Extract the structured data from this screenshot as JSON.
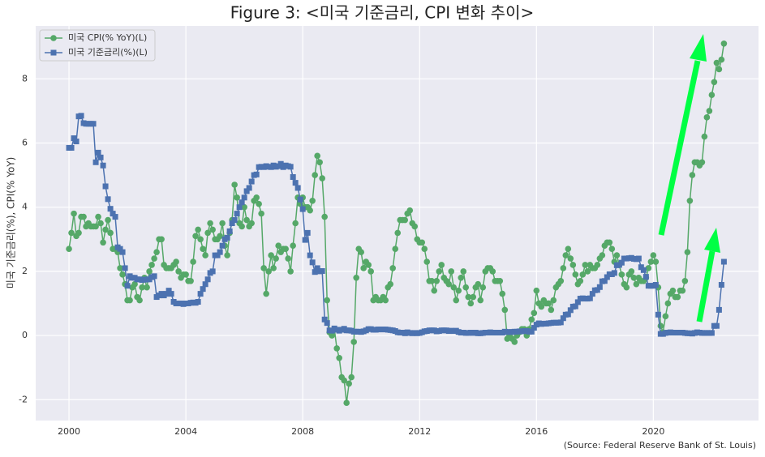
{
  "chart_data": {
    "type": "line",
    "title": "Figure 3: <미국 기준금리, CPI 변화 추이>",
    "y_label": "미국 기준금리(%), CPI(% YoY)",
    "source": "(Source: Federal Reserve Bank of St. Louis)",
    "xlim": [
      1998.86,
      2023.6
    ],
    "xticks": [
      2000,
      2004,
      2008,
      2012,
      2016,
      2020
    ],
    "ylim": [
      -2.65,
      9.65
    ],
    "yticks": [
      -2,
      0,
      2,
      4,
      6,
      8
    ],
    "grid": true,
    "legend": "upper left",
    "x": [
      2000,
      2000.083,
      2000.167,
      2000.25,
      2000.333,
      2000.417,
      2000.5,
      2000.583,
      2000.667,
      2000.75,
      2000.833,
      2000.917,
      2001,
      2001.083,
      2001.167,
      2001.25,
      2001.333,
      2001.417,
      2001.5,
      2001.583,
      2001.667,
      2001.75,
      2001.833,
      2001.917,
      2002,
      2002.083,
      2002.167,
      2002.25,
      2002.333,
      2002.417,
      2002.5,
      2002.583,
      2002.667,
      2002.75,
      2002.833,
      2002.917,
      2003,
      2003.083,
      2003.167,
      2003.25,
      2003.333,
      2003.417,
      2003.5,
      2003.583,
      2003.667,
      2003.75,
      2003.833,
      2003.917,
      2004,
      2004.083,
      2004.167,
      2004.25,
      2004.333,
      2004.417,
      2004.5,
      2004.583,
      2004.667,
      2004.75,
      2004.833,
      2004.917,
      2005,
      2005.083,
      2005.167,
      2005.25,
      2005.333,
      2005.417,
      2005.5,
      2005.583,
      2005.667,
      2005.75,
      2005.833,
      2005.917,
      2006,
      2006.083,
      2006.167,
      2006.25,
      2006.333,
      2006.417,
      2006.5,
      2006.583,
      2006.667,
      2006.75,
      2006.833,
      2006.917,
      2007,
      2007.083,
      2007.167,
      2007.25,
      2007.333,
      2007.417,
      2007.5,
      2007.583,
      2007.667,
      2007.75,
      2007.833,
      2007.917,
      2008,
      2008.083,
      2008.167,
      2008.25,
      2008.333,
      2008.417,
      2008.5,
      2008.583,
      2008.667,
      2008.75,
      2008.833,
      2008.917,
      2009,
      2009.083,
      2009.167,
      2009.25,
      2009.333,
      2009.417,
      2009.5,
      2009.583,
      2009.667,
      2009.75,
      2009.833,
      2009.917,
      2010,
      2010.083,
      2010.167,
      2010.25,
      2010.333,
      2010.417,
      2010.5,
      2010.583,
      2010.667,
      2010.75,
      2010.833,
      2010.917,
      2011,
      2011.083,
      2011.167,
      2011.25,
      2011.333,
      2011.417,
      2011.5,
      2011.583,
      2011.667,
      2011.75,
      2011.833,
      2011.917,
      2012,
      2012.083,
      2012.167,
      2012.25,
      2012.333,
      2012.417,
      2012.5,
      2012.583,
      2012.667,
      2012.75,
      2012.833,
      2012.917,
      2013,
      2013.083,
      2013.167,
      2013.25,
      2013.333,
      2013.417,
      2013.5,
      2013.583,
      2013.667,
      2013.75,
      2013.833,
      2013.917,
      2014,
      2014.083,
      2014.167,
      2014.25,
      2014.333,
      2014.417,
      2014.5,
      2014.583,
      2014.667,
      2014.75,
      2014.833,
      2014.917,
      2015,
      2015.083,
      2015.167,
      2015.25,
      2015.333,
      2015.417,
      2015.5,
      2015.583,
      2015.667,
      2015.75,
      2015.833,
      2015.917,
      2016,
      2016.083,
      2016.167,
      2016.25,
      2016.333,
      2016.417,
      2016.5,
      2016.583,
      2016.667,
      2016.75,
      2016.833,
      2016.917,
      2017,
      2017.083,
      2017.167,
      2017.25,
      2017.333,
      2017.417,
      2017.5,
      2017.583,
      2017.667,
      2017.75,
      2017.833,
      2017.917,
      2018,
      2018.083,
      2018.167,
      2018.25,
      2018.333,
      2018.417,
      2018.5,
      2018.583,
      2018.667,
      2018.75,
      2018.833,
      2018.917,
      2019,
      2019.083,
      2019.167,
      2019.25,
      2019.333,
      2019.417,
      2019.5,
      2019.583,
      2019.667,
      2019.75,
      2019.833,
      2019.917,
      2020,
      2020.083,
      2020.167,
      2020.25,
      2020.333,
      2020.417,
      2020.5,
      2020.583,
      2020.667,
      2020.75,
      2020.833,
      2020.917,
      2021,
      2021.083,
      2021.167,
      2021.25,
      2021.333,
      2021.417,
      2021.5,
      2021.583,
      2021.667,
      2021.75,
      2021.833,
      2021.917,
      2022,
      2022.083,
      2022.167,
      2022.25,
      2022.333,
      2022.417
    ],
    "series": [
      {
        "name": "미국 CPI(% YoY)(L)",
        "color": "#55a868",
        "marker": "o",
        "values": [
          2.7,
          3.2,
          3.8,
          3.1,
          3.2,
          3.7,
          3.7,
          3.4,
          3.5,
          3.4,
          3.4,
          3.4,
          3.7,
          3.5,
          2.9,
          3.3,
          3.6,
          3.2,
          2.7,
          2.7,
          2.6,
          2.1,
          1.9,
          1.6,
          1.1,
          1.1,
          1.5,
          1.6,
          1.2,
          1.1,
          1.5,
          1.8,
          1.5,
          2.0,
          2.2,
          2.4,
          2.6,
          3.0,
          3.0,
          2.2,
          2.1,
          2.1,
          2.1,
          2.2,
          2.3,
          2.0,
          1.8,
          1.9,
          1.9,
          1.7,
          1.7,
          2.3,
          3.1,
          3.3,
          3.0,
          2.7,
          2.5,
          3.2,
          3.5,
          3.3,
          3.0,
          3.0,
          3.1,
          3.5,
          2.8,
          2.5,
          3.2,
          3.6,
          4.7,
          4.3,
          3.5,
          3.4,
          4.0,
          3.6,
          3.4,
          3.5,
          4.2,
          4.3,
          4.1,
          3.8,
          2.1,
          1.3,
          2.0,
          2.5,
          2.1,
          2.4,
          2.8,
          2.6,
          2.7,
          2.7,
          2.4,
          2.0,
          2.8,
          3.5,
          4.3,
          4.1,
          4.3,
          4.0,
          4.0,
          3.9,
          4.2,
          5.0,
          5.6,
          5.4,
          4.9,
          3.7,
          1.1,
          0.1,
          0.0,
          0.2,
          -0.4,
          -0.7,
          -1.3,
          -1.4,
          -2.1,
          -1.5,
          -1.3,
          -0.2,
          1.8,
          2.7,
          2.6,
          2.1,
          2.3,
          2.2,
          2.0,
          1.1,
          1.2,
          1.1,
          1.1,
          1.2,
          1.1,
          1.5,
          1.6,
          2.1,
          2.7,
          3.2,
          3.6,
          3.6,
          3.6,
          3.8,
          3.9,
          3.5,
          3.4,
          3.0,
          2.9,
          2.9,
          2.7,
          2.3,
          1.7,
          1.7,
          1.4,
          1.7,
          2.0,
          2.2,
          1.8,
          1.7,
          1.6,
          2.0,
          1.5,
          1.1,
          1.4,
          1.8,
          2.0,
          1.5,
          1.2,
          1.0,
          1.2,
          1.5,
          1.6,
          1.1,
          1.5,
          2.0,
          2.1,
          2.1,
          2.0,
          1.7,
          1.7,
          1.7,
          1.3,
          0.8,
          -0.1,
          0.0,
          -0.1,
          -0.2,
          0.0,
          0.1,
          0.2,
          0.2,
          0.0,
          0.2,
          0.5,
          0.7,
          1.4,
          1.0,
          0.9,
          1.1,
          1.0,
          1.0,
          0.8,
          1.1,
          1.5,
          1.6,
          1.7,
          2.1,
          2.5,
          2.7,
          2.4,
          2.2,
          1.9,
          1.6,
          1.7,
          1.9,
          2.2,
          2.0,
          2.2,
          2.1,
          2.1,
          2.2,
          2.4,
          2.5,
          2.8,
          2.9,
          2.9,
          2.7,
          2.3,
          2.5,
          2.2,
          1.9,
          1.6,
          1.5,
          1.9,
          2.0,
          1.8,
          1.6,
          1.8,
          1.7,
          1.7,
          1.8,
          2.1,
          2.3,
          2.5,
          2.3,
          1.5,
          0.3,
          0.1,
          0.6,
          1.0,
          1.3,
          1.4,
          1.2,
          1.2,
          1.4,
          1.4,
          1.7,
          2.6,
          4.2,
          5.0,
          5.4,
          5.4,
          5.3,
          5.4,
          6.2,
          6.8,
          7.0,
          7.5,
          7.9,
          8.5,
          8.3,
          8.6,
          9.1
        ]
      },
      {
        "name": "미국 기준금리(%)(L)",
        "color": "#4c72b0",
        "marker": "s",
        "values": [
          5.85,
          5.85,
          6.15,
          6.05,
          6.83,
          6.85,
          6.62,
          6.6,
          6.6,
          6.6,
          6.6,
          5.4,
          5.7,
          5.55,
          5.3,
          4.65,
          4.25,
          3.95,
          3.8,
          3.7,
          2.75,
          2.7,
          2.6,
          2.1,
          1.55,
          1.85,
          1.8,
          1.8,
          1.75,
          1.75,
          1.73,
          1.74,
          1.75,
          1.75,
          1.82,
          1.85,
          1.2,
          1.25,
          1.3,
          1.25,
          1.3,
          1.4,
          1.3,
          1.05,
          1.0,
          1.0,
          1.0,
          0.98,
          1.0,
          1.0,
          1.02,
          1.03,
          1.02,
          1.05,
          1.3,
          1.45,
          1.6,
          1.75,
          1.95,
          2.0,
          2.5,
          2.5,
          2.6,
          2.8,
          3.0,
          3.05,
          3.25,
          3.5,
          3.6,
          3.8,
          4.0,
          4.15,
          4.3,
          4.5,
          4.6,
          4.8,
          5.0,
          5.02,
          5.25,
          5.26,
          5.25,
          5.28,
          5.26,
          5.25,
          5.3,
          5.26,
          5.28,
          5.35,
          5.25,
          5.3,
          5.28,
          5.26,
          4.94,
          4.76,
          4.6,
          4.24,
          3.94,
          2.98,
          3.2,
          2.5,
          2.28,
          1.98,
          2.1,
          2.0,
          2.01,
          0.5,
          0.39,
          0.16,
          0.15,
          0.22,
          0.18,
          0.15,
          0.18,
          0.21,
          0.16,
          0.16,
          0.15,
          0.12,
          0.12,
          0.12,
          0.11,
          0.13,
          0.16,
          0.2,
          0.2,
          0.18,
          0.18,
          0.19,
          0.19,
          0.19,
          0.19,
          0.18,
          0.17,
          0.16,
          0.14,
          0.1,
          0.09,
          0.09,
          0.07,
          0.1,
          0.08,
          0.07,
          0.08,
          0.07,
          0.08,
          0.1,
          0.13,
          0.14,
          0.16,
          0.16,
          0.16,
          0.13,
          0.14,
          0.16,
          0.16,
          0.16,
          0.14,
          0.15,
          0.14,
          0.15,
          0.11,
          0.09,
          0.09,
          0.08,
          0.08,
          0.09,
          0.08,
          0.09,
          0.07,
          0.07,
          0.08,
          0.09,
          0.09,
          0.1,
          0.09,
          0.09,
          0.09,
          0.09,
          0.09,
          0.12,
          0.11,
          0.11,
          0.11,
          0.12,
          0.12,
          0.13,
          0.13,
          0.14,
          0.14,
          0.12,
          0.12,
          0.24,
          0.34,
          0.38,
          0.36,
          0.37,
          0.37,
          0.38,
          0.39,
          0.4,
          0.4,
          0.4,
          0.41,
          0.54,
          0.65,
          0.66,
          0.79,
          0.9,
          0.91,
          1.04,
          1.15,
          1.16,
          1.15,
          1.15,
          1.16,
          1.3,
          1.41,
          1.42,
          1.51,
          1.69,
          1.7,
          1.82,
          1.91,
          1.91,
          1.95,
          2.19,
          2.2,
          2.27,
          2.4,
          2.4,
          2.41,
          2.42,
          2.39,
          2.38,
          2.4,
          2.13,
          2.04,
          1.83,
          1.55,
          1.55,
          1.55,
          1.58,
          0.65,
          0.05,
          0.05,
          0.08,
          0.09,
          0.1,
          0.09,
          0.09,
          0.09,
          0.09,
          0.09,
          0.08,
          0.07,
          0.07,
          0.06,
          0.08,
          0.1,
          0.09,
          0.08,
          0.08,
          0.08,
          0.08,
          0.08,
          0.3,
          0.3,
          0.8,
          1.58,
          2.3
        ]
      }
    ]
  }
}
